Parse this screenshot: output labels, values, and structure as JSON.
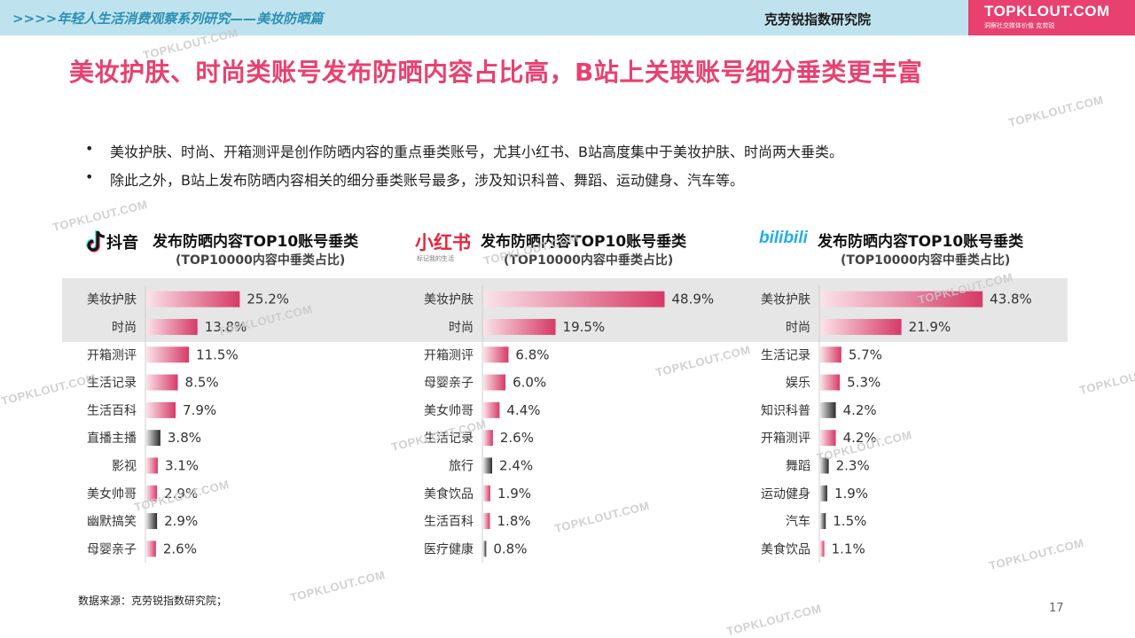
{
  "header": {
    "series_title": ">>>>年轻人生活消费观察系列研究——美妆防晒篇",
    "org": "克劳锐指数研究院",
    "logo_text": "TOPKLOUT.COM",
    "logo_sub": "洞察社交媒体价值 克劳锐"
  },
  "slide": {
    "title": "美妆护肤、时尚类账号发布防晒内容占比高，B站上关联账号细分垂类更丰富",
    "bullets": [
      "美妆护肤、时尚、开箱测评是创作防晒内容的重点垂类账号，尤其小红书、B站高度集中于美妆护肤、时尚两大垂类。",
      "除此之外，B站上发布防晒内容相关的细分垂类账号最多，涉及知识科普、舞蹈、运动健身、汽车等。"
    ],
    "bullet_mark": "•",
    "source": "数据来源：克劳锐指数研究院；",
    "page_number": "17",
    "watermark": "TOPKLOUT.COM"
  },
  "colors": {
    "accent": "#e8416f",
    "pink_bar": "#d63a66",
    "dark_bar": "#2b2b2b"
  },
  "platforms": [
    {
      "name": "抖音",
      "logo_icon": "douyin-icon",
      "subtitle_small": ""
    },
    {
      "name": "小红书",
      "logo_icon": "xiaohongshu-icon",
      "subtitle_small": "标记我的生活"
    },
    {
      "name": "bilibili",
      "logo_icon": "bilibili-icon",
      "subtitle_small": ""
    }
  ],
  "chart_data": [
    {
      "type": "bar",
      "orientation": "horizontal",
      "title": "发布防晒内容TOP10账号垂类",
      "subtitle": "(TOP10000内容中垂类占比)",
      "categories": [
        "美妆护肤",
        "时尚",
        "开箱测评",
        "生活记录",
        "生活百科",
        "直播主播",
        "影视",
        "美女帅哥",
        "幽默搞笑",
        "母婴亲子"
      ],
      "values": [
        25.2,
        13.8,
        11.5,
        8.5,
        7.9,
        3.8,
        3.1,
        2.9,
        2.9,
        2.6
      ],
      "labels": [
        "25.2%",
        "13.8%",
        "11.5%",
        "8.5%",
        "7.9%",
        "3.8%",
        "3.1%",
        "2.9%",
        "2.9%",
        "2.6%"
      ],
      "bar_colors": [
        "pink",
        "pink",
        "pink",
        "pink",
        "pink",
        "dark",
        "pink",
        "pink",
        "dark",
        "pink"
      ],
      "highlighted_rows": 2,
      "unit": "%",
      "xlim": [
        0,
        55
      ]
    },
    {
      "type": "bar",
      "orientation": "horizontal",
      "title": "发布防晒内容TOP10账号垂类",
      "subtitle": "(TOP10000内容中垂类占比)",
      "categories": [
        "美妆护肤",
        "时尚",
        "开箱测评",
        "母婴亲子",
        "美女帅哥",
        "生活记录",
        "旅行",
        "美食饮品",
        "生活百科",
        "医疗健康"
      ],
      "values": [
        48.9,
        19.5,
        6.8,
        6.0,
        4.4,
        2.6,
        2.4,
        1.9,
        1.8,
        0.8
      ],
      "labels": [
        "48.9%",
        "19.5%",
        "6.8%",
        "6.0%",
        "4.4%",
        "2.6%",
        "2.4%",
        "1.9%",
        "1.8%",
        "0.8%"
      ],
      "bar_colors": [
        "pink",
        "pink",
        "pink",
        "pink",
        "pink",
        "pink",
        "dark",
        "pink",
        "pink",
        "dark"
      ],
      "highlighted_rows": 2,
      "unit": "%",
      "xlim": [
        0,
        55
      ]
    },
    {
      "type": "bar",
      "orientation": "horizontal",
      "title": "发布防晒内容TOP10账号垂类",
      "subtitle": "(TOP10000内容中垂类占比)",
      "categories": [
        "美妆护肤",
        "时尚",
        "生活记录",
        "娱乐",
        "知识科普",
        "开箱测评",
        "舞蹈",
        "运动健身",
        "汽车",
        "美食饮品"
      ],
      "values": [
        43.8,
        21.9,
        5.7,
        5.3,
        4.2,
        4.2,
        2.3,
        1.9,
        1.5,
        1.1
      ],
      "labels": [
        "43.8%",
        "21.9%",
        "5.7%",
        "5.3%",
        "4.2%",
        "4.2%",
        "2.3%",
        "1.9%",
        "1.5%",
        "1.1%"
      ],
      "bar_colors": [
        "pink",
        "pink",
        "pink",
        "pink",
        "dark",
        "pink",
        "dark",
        "dark",
        "dark",
        "pink"
      ],
      "highlighted_rows": 2,
      "unit": "%",
      "xlim": [
        0,
        55
      ]
    }
  ]
}
